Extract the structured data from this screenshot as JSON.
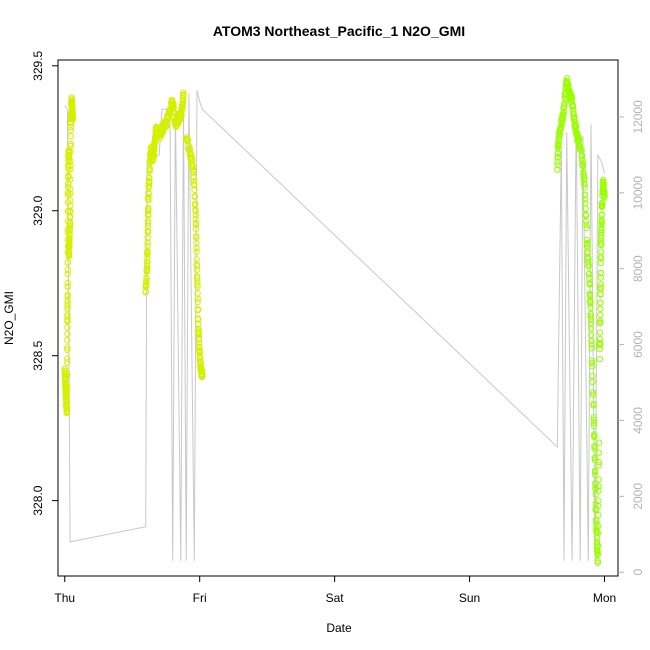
{
  "chart_data": {
    "type": "scatter",
    "title": "ATOM3 Northeast_Pacific_1 N2O_GMI",
    "xlabel": "Date",
    "ylabel": "N2O_GMI",
    "x_tick_labels": [
      "Thu",
      "Fri",
      "Sat",
      "Sun",
      "Mon"
    ],
    "x_tick_values": [
      0,
      1,
      2,
      3,
      4
    ],
    "xlim": [
      -0.05,
      4.1
    ],
    "ylim": [
      327.74,
      329.52
    ],
    "y_ticks": [
      328.0,
      328.5,
      329.0,
      329.5
    ],
    "y_tick_labels": [
      "328.0",
      "328.5",
      "329.0",
      "329.5"
    ],
    "y2lim": [
      -100,
      13500
    ],
    "y2_ticks": [
      0,
      2000,
      4000,
      6000,
      8000,
      10000,
      12000
    ],
    "y2_tick_labels": [
      "0",
      "2000",
      "4000",
      "6000",
      "8000",
      "10000",
      "12000"
    ],
    "colors": {
      "altitude_line": "#c8c8c8",
      "points_yellow": "#d4f000",
      "points_lime": "#99ff00",
      "axis": "#000000",
      "right_axis": "#b3b3b3"
    },
    "series": [
      {
        "color": "#d4f000",
        "segments": [
          {
            "x0": 0.0,
            "x1": 0.03,
            "pts": [
              [
                0.0,
                328.45
              ],
              [
                0.005,
                328.4
              ],
              [
                0.01,
                328.35
              ],
              [
                0.015,
                328.3
              ],
              [
                0.02,
                328.6
              ],
              [
                0.022,
                328.75
              ],
              [
                0.025,
                329.05
              ],
              [
                0.028,
                329.18
              ],
              [
                0.03,
                329.2
              ]
            ]
          },
          {
            "x0": 0.03,
            "x1": 0.06,
            "pts": [
              [
                0.03,
                328.85
              ],
              [
                0.035,
                328.9
              ],
              [
                0.04,
                329.0
              ],
              [
                0.045,
                329.3
              ],
              [
                0.05,
                329.38
              ],
              [
                0.055,
                329.36
              ],
              [
                0.06,
                329.32
              ]
            ]
          },
          {
            "x0": 0.6,
            "x1": 0.68,
            "pts": [
              [
                0.6,
                328.72
              ],
              [
                0.61,
                328.8
              ],
              [
                0.615,
                328.9
              ],
              [
                0.62,
                329.05
              ],
              [
                0.63,
                329.15
              ],
              [
                0.64,
                329.22
              ],
              [
                0.65,
                329.18
              ],
              [
                0.66,
                329.2
              ],
              [
                0.67,
                329.25
              ],
              [
                0.68,
                329.28
              ]
            ]
          },
          {
            "x0": 0.68,
            "x1": 0.88,
            "pts": [
              [
                0.7,
                329.25
              ],
              [
                0.72,
                329.28
              ],
              [
                0.75,
                329.3
              ],
              [
                0.78,
                329.35
              ],
              [
                0.8,
                329.38
              ],
              [
                0.82,
                329.3
              ],
              [
                0.85,
                329.32
              ],
              [
                0.87,
                329.35
              ],
              [
                0.88,
                329.4
              ]
            ]
          },
          {
            "x0": 0.88,
            "x1": 1.02,
            "pts": [
              [
                0.9,
                329.25
              ],
              [
                0.93,
                329.2
              ],
              [
                0.95,
                329.15
              ],
              [
                0.97,
                329.0
              ],
              [
                0.98,
                328.8
              ],
              [
                0.99,
                328.6
              ],
              [
                1.0,
                328.5
              ],
              [
                1.01,
                328.45
              ],
              [
                1.02,
                328.43
              ]
            ]
          }
        ]
      },
      {
        "color": "#99ff00",
        "segments": [
          {
            "x0": 3.65,
            "x1": 3.82,
            "pts": [
              [
                3.65,
                329.15
              ],
              [
                3.66,
                329.25
              ],
              [
                3.68,
                329.3
              ],
              [
                3.7,
                329.35
              ],
              [
                3.72,
                329.45
              ],
              [
                3.74,
                329.4
              ],
              [
                3.76,
                329.38
              ],
              [
                3.78,
                329.3
              ],
              [
                3.8,
                329.25
              ],
              [
                3.82,
                329.22
              ]
            ]
          },
          {
            "x0": 3.82,
            "x1": 3.96,
            "pts": [
              [
                3.83,
                329.2
              ],
              [
                3.85,
                329.1
              ],
              [
                3.87,
                328.9
              ],
              [
                3.89,
                328.75
              ],
              [
                3.9,
                328.6
              ],
              [
                3.92,
                328.3
              ],
              [
                3.93,
                328.1
              ],
              [
                3.94,
                327.9
              ],
              [
                3.95,
                327.8
              ],
              [
                3.96,
                328.2
              ]
            ]
          },
          {
            "x0": 3.96,
            "x1": 4.0,
            "pts": [
              [
                3.965,
                328.5
              ],
              [
                3.97,
                328.7
              ],
              [
                3.975,
                328.9
              ],
              [
                3.98,
                329.0
              ],
              [
                3.99,
                329.1
              ],
              [
                4.0,
                329.05
              ]
            ]
          }
        ]
      }
    ],
    "altitude_line": [
      [
        0.0,
        12300
      ],
      [
        0.02,
        12200
      ],
      [
        0.04,
        800
      ],
      [
        0.6,
        1200
      ],
      [
        0.61,
        10800
      ],
      [
        0.7,
        11000
      ],
      [
        0.72,
        12200
      ],
      [
        0.78,
        12200
      ],
      [
        0.8,
        300
      ],
      [
        0.82,
        12200
      ],
      [
        0.86,
        300
      ],
      [
        0.88,
        12400
      ],
      [
        0.9,
        300
      ],
      [
        0.92,
        12600
      ],
      [
        0.96,
        300
      ],
      [
        0.98,
        12700
      ],
      [
        1.0,
        12400
      ],
      [
        1.02,
        12200
      ],
      [
        3.65,
        3300
      ],
      [
        3.68,
        11200
      ],
      [
        3.7,
        300
      ],
      [
        3.72,
        11600
      ],
      [
        3.76,
        300
      ],
      [
        3.79,
        12000
      ],
      [
        3.82,
        300
      ],
      [
        3.84,
        11500
      ],
      [
        3.88,
        300
      ],
      [
        3.9,
        11800
      ],
      [
        3.93,
        300
      ],
      [
        3.95,
        11000
      ],
      [
        3.98,
        10800
      ],
      [
        4.0,
        10500
      ]
    ]
  }
}
